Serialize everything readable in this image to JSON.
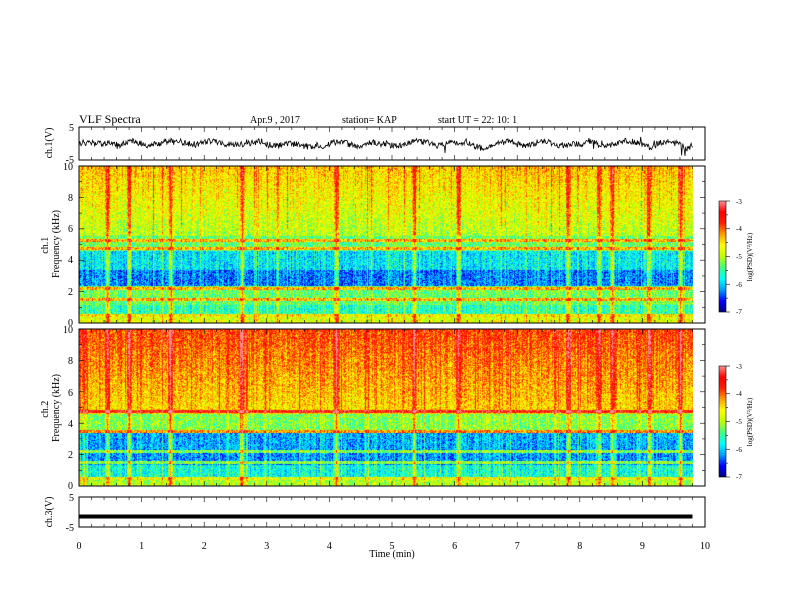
{
  "header": {
    "title": "VLF Spectra",
    "date": "Apr.9 , 2017",
    "station": "station= KAP",
    "start": "start UT = 22: 10: 1"
  },
  "colors": {
    "colormap": [
      "#000080",
      "#0000ff",
      "#00a0ff",
      "#00ffff",
      "#40ff80",
      "#c0ff00",
      "#ffff00",
      "#ffa000",
      "#ff2000",
      "#ff0000",
      "#ff9090",
      "#ffffff"
    ]
  },
  "chart_data": [
    {
      "type": "line",
      "id": "ch1-waveform",
      "ylabel": "ch.1(V)",
      "ylim": [
        -5,
        5
      ],
      "yticks": [
        "5",
        "-5"
      ],
      "xlim": [
        0,
        10
      ],
      "description_values": "noisy waveform oscillating between about -2 and 2 V over 0-9.8 min"
    },
    {
      "type": "heatmap",
      "id": "ch1-spectrogram",
      "ylabel": "ch.1\nFrequency (kHz)",
      "ylim": [
        0,
        10
      ],
      "yticks": [
        "0",
        "2",
        "4",
        "6",
        "8",
        "10"
      ],
      "xlim": [
        0,
        10
      ],
      "data_extent_x": [
        0,
        9.8
      ],
      "colorbar": {
        "label": "log(PSD)(V²/Hz)",
        "range": [
          -7,
          -3
        ],
        "ticks": [
          "-3",
          "-4",
          "-5",
          "-6",
          "-7"
        ]
      },
      "bright_columns_min": [
        0.45,
        0.8,
        1.45,
        2.6,
        4.1,
        5.35,
        6.05,
        7.8,
        8.3,
        8.5,
        9.1,
        9.6
      ],
      "horizontal_lines_khz": [
        0.5,
        1.5,
        2.2,
        4.8,
        5.3
      ]
    },
    {
      "type": "heatmap",
      "id": "ch2-spectrogram",
      "ylabel": "ch.2\nFrequency (kHz)",
      "ylim": [
        0,
        10
      ],
      "yticks": [
        "0",
        "2",
        "4",
        "6",
        "8",
        "10"
      ],
      "xlim": [
        0,
        10
      ],
      "data_extent_x": [
        0,
        9.8
      ],
      "colorbar": {
        "label": "log(PSD)(V²/Hz)",
        "range": [
          -7,
          -3
        ],
        "ticks": [
          "-3",
          "-4",
          "-5",
          "-6",
          "-7"
        ]
      },
      "bright_columns_min": [
        0.45,
        0.8,
        1.45,
        2.6,
        4.1,
        5.35,
        6.05,
        7.8,
        8.3,
        8.5,
        9.1,
        9.6
      ],
      "horizontal_lines_khz": [
        0.5,
        1.5,
        2.2,
        3.5,
        4.8
      ]
    },
    {
      "type": "line",
      "id": "ch3-waveform",
      "ylabel": "ch.3(V)",
      "ylim": [
        -5,
        5
      ],
      "yticks": [
        "5",
        "-5"
      ],
      "xlim": [
        0,
        10
      ],
      "xlabel": "Time (min)",
      "xticks": [
        "0",
        "1",
        "2",
        "3",
        "4",
        "5",
        "6",
        "7",
        "8",
        "9",
        "10"
      ],
      "values_constant_V": -1.5,
      "data_extent_x": [
        0,
        9.8
      ]
    }
  ]
}
